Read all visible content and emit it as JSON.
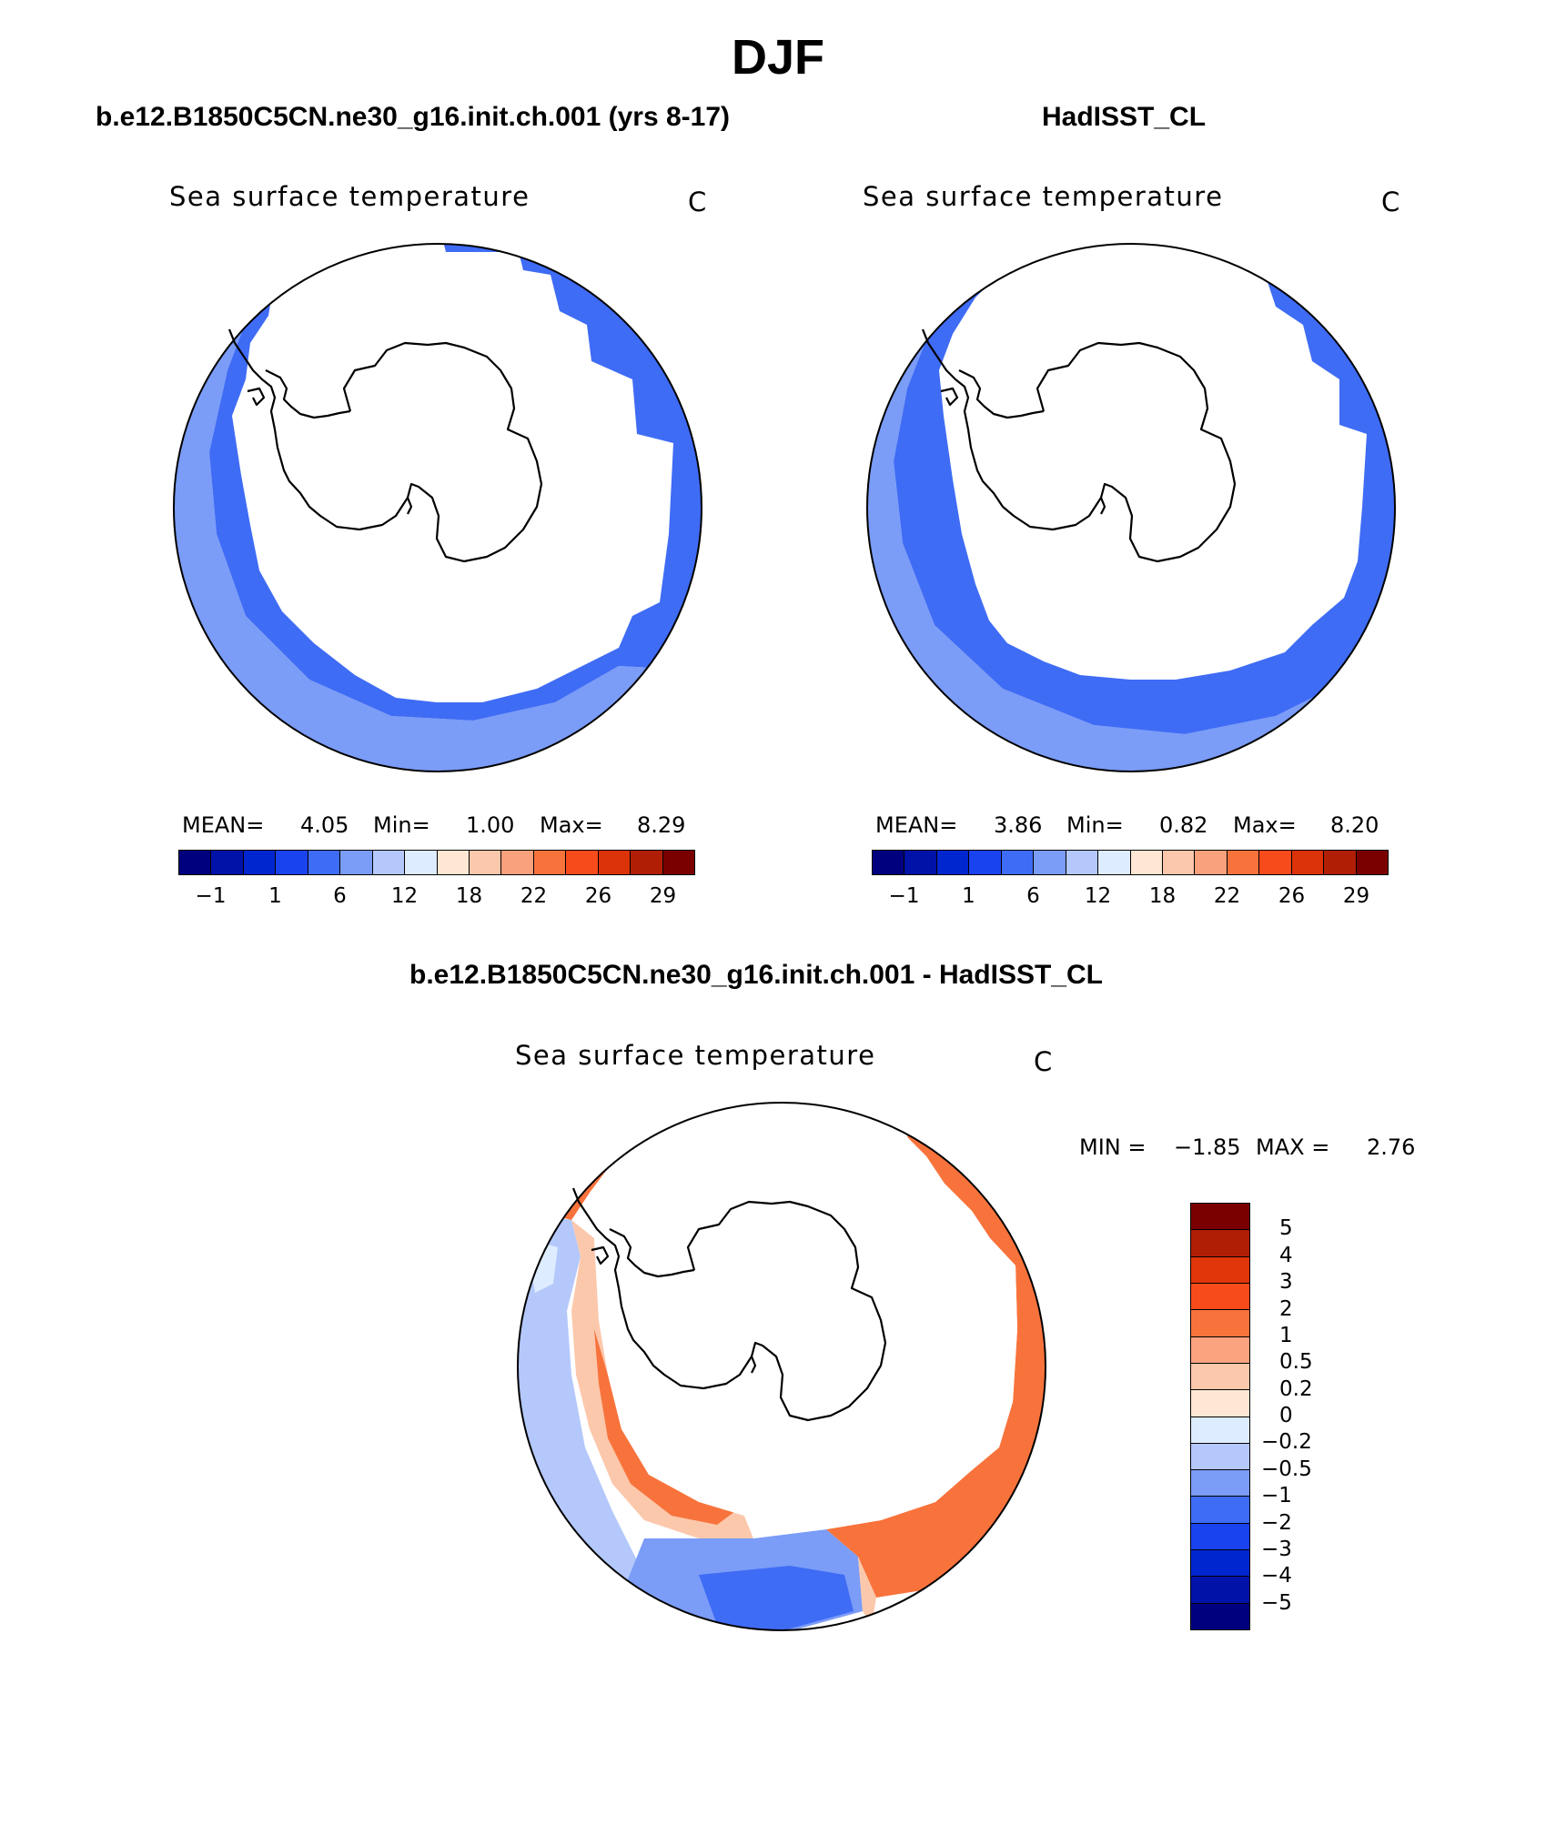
{
  "title": "DJF",
  "panels": [
    {
      "id": "model",
      "case_title": "b.e12.B1850C5CN.ne30_g16.init.ch.001 (yrs 8-17)",
      "variable": "Sea surface temperature",
      "units": "C",
      "stats": {
        "mean_label": "MEAN=",
        "mean": "4.05",
        "min_label": "Min=",
        "min": "1.00",
        "max_label": "Max=",
        "max": "8.29"
      }
    },
    {
      "id": "obs",
      "case_title": "HadISST_CL",
      "variable": "Sea surface temperature",
      "units": "C",
      "stats": {
        "mean_label": "MEAN=",
        "mean": "3.86",
        "min_label": "Min=",
        "min": "0.82",
        "max_label": "Max=",
        "max": "8.20"
      }
    }
  ],
  "diff": {
    "case_title": "b.e12.B1850C5CN.ne30_g16.init.ch.001 - HadISST_CL",
    "variable": "Sea surface temperature",
    "units": "C",
    "minmax": {
      "min_label": "MIN =",
      "min": "−1.85",
      "max_label": "MAX =",
      "max": "2.76"
    }
  },
  "colorbar_abs": {
    "colors": [
      "#00007f",
      "#0012a8",
      "#0026d0",
      "#1a43f0",
      "#3f6cf5",
      "#7b9cf7",
      "#b4c8fb",
      "#deecff",
      "#ffe7d4",
      "#fcc8ac",
      "#f9a07c",
      "#f8733c",
      "#f84b1c",
      "#dc3208",
      "#b01e05",
      "#7a0000"
    ],
    "labels": [
      "−1",
      "1",
      "6",
      "12",
      "18",
      "22",
      "26",
      "29"
    ]
  },
  "colorbar_diff": {
    "colors": [
      "#7a0000",
      "#b01e05",
      "#e0360a",
      "#f84b1c",
      "#f8733c",
      "#fba27f",
      "#fcc8ac",
      "#ffe7d4",
      "#deecff",
      "#b4c8fb",
      "#7b9cf7",
      "#3f6cf5",
      "#1a43f0",
      "#0026d0",
      "#0012a8",
      "#00007f"
    ],
    "labels": [
      "5",
      "4",
      "3",
      "2",
      "1",
      "0.5",
      "0.2",
      "0",
      "−0.2",
      "−0.5",
      "−1",
      "−2",
      "−3",
      "−4",
      "−5"
    ]
  }
}
